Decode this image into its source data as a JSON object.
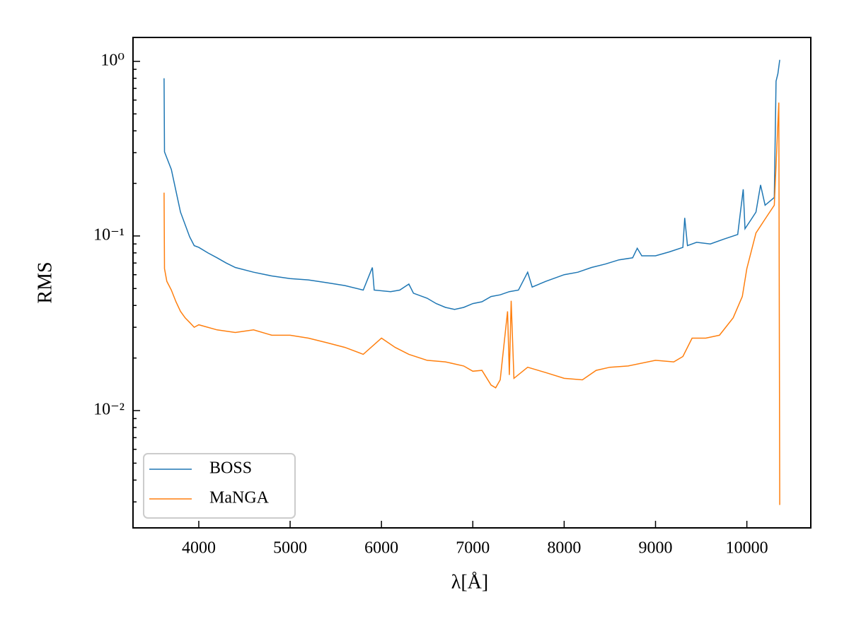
{
  "chart_data": {
    "type": "line",
    "xlabel": "λ[Å]",
    "ylabel": "RMS",
    "xlim": [
      3280,
      10700
    ],
    "xticks": [
      4000,
      5000,
      6000,
      7000,
      8000,
      9000,
      10000
    ],
    "ylim": [
      0.00213,
      1.37
    ],
    "ylog": true,
    "yticks": [
      {
        "value": 1,
        "label": "10⁰"
      },
      {
        "value": 0.1,
        "label": "10⁻¹"
      },
      {
        "value": 0.01,
        "label": "10⁻²"
      }
    ],
    "yminorticks": [
      0.003,
      0.004,
      0.005,
      0.006,
      0.007,
      0.008,
      0.009,
      0.02,
      0.03,
      0.04,
      0.05,
      0.06,
      0.07,
      0.08,
      0.09,
      0.2,
      0.3,
      0.4,
      0.5,
      0.6,
      0.7,
      0.8,
      0.9
    ],
    "legend": "lower left",
    "series": [
      {
        "name": "BOSS",
        "color": "#1f77b4",
        "x": [
          3620,
          3625,
          3700,
          3800,
          3900,
          3950,
          4000,
          4100,
          4200,
          4300,
          4400,
          4600,
          4800,
          5000,
          5200,
          5400,
          5600,
          5800,
          5900,
          5920,
          6100,
          6200,
          6300,
          6350,
          6500,
          6600,
          6700,
          6800,
          6900,
          7000,
          7100,
          7200,
          7300,
          7400,
          7500,
          7600,
          7650,
          7800,
          8000,
          8150,
          8300,
          8450,
          8600,
          8750,
          8800,
          8850,
          9000,
          9150,
          9300,
          9320,
          9350,
          9450,
          9600,
          9750,
          9900,
          9960,
          9980,
          10050,
          10100,
          10150,
          10200,
          10300,
          10320,
          10340,
          10360
        ],
        "values": [
          0.8,
          0.303,
          0.24,
          0.137,
          0.099,
          0.088,
          0.086,
          0.08,
          0.075,
          0.07,
          0.066,
          0.062,
          0.059,
          0.057,
          0.056,
          0.054,
          0.052,
          0.049,
          0.066,
          0.049,
          0.048,
          0.049,
          0.053,
          0.047,
          0.044,
          0.041,
          0.039,
          0.038,
          0.039,
          0.041,
          0.042,
          0.045,
          0.046,
          0.048,
          0.049,
          0.062,
          0.051,
          0.055,
          0.06,
          0.062,
          0.066,
          0.069,
          0.073,
          0.075,
          0.085,
          0.077,
          0.077,
          0.081,
          0.086,
          0.127,
          0.088,
          0.092,
          0.09,
          0.096,
          0.102,
          0.185,
          0.11,
          0.125,
          0.137,
          0.196,
          0.15,
          0.166,
          0.77,
          0.85,
          1.02
        ]
      },
      {
        "name": "MaNGA",
        "color": "#ff7f0e",
        "x": [
          3620,
          3625,
          3650,
          3700,
          3750,
          3800,
          3850,
          3900,
          3950,
          4000,
          4200,
          4400,
          4600,
          4800,
          5000,
          5200,
          5400,
          5600,
          5800,
          6000,
          6150,
          6300,
          6500,
          6700,
          6900,
          7000,
          7100,
          7200,
          7250,
          7300,
          7380,
          7400,
          7420,
          7450,
          7600,
          7800,
          8000,
          8200,
          8350,
          8500,
          8700,
          9000,
          9200,
          9300,
          9400,
          9550,
          9700,
          9850,
          9950,
          10000,
          10100,
          10200,
          10300,
          10350,
          10360,
          10365
        ],
        "values": [
          0.177,
          0.065,
          0.055,
          0.049,
          0.042,
          0.037,
          0.034,
          0.032,
          0.03,
          0.031,
          0.029,
          0.028,
          0.029,
          0.027,
          0.027,
          0.026,
          0.0245,
          0.023,
          0.021,
          0.026,
          0.023,
          0.021,
          0.0194,
          0.019,
          0.018,
          0.0168,
          0.017,
          0.014,
          0.0135,
          0.015,
          0.037,
          0.016,
          0.0425,
          0.0153,
          0.0177,
          0.0165,
          0.0153,
          0.015,
          0.017,
          0.0177,
          0.018,
          0.0194,
          0.019,
          0.0204,
          0.026,
          0.026,
          0.027,
          0.034,
          0.045,
          0.065,
          0.104,
          0.125,
          0.15,
          0.58,
          0.0029,
          0.0029
        ]
      }
    ]
  }
}
